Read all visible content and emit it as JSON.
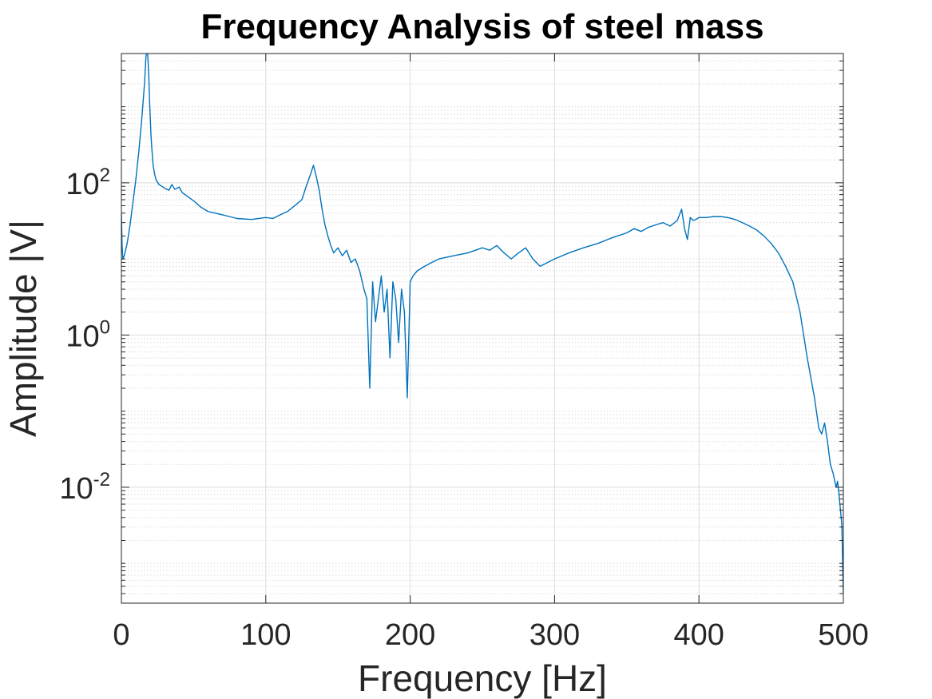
{
  "chart_data": {
    "type": "line",
    "title": "Frequency Analysis of steel mass",
    "xlabel": "Frequency [Hz]",
    "ylabel": "Amplitude |V|",
    "xlim": [
      0,
      500
    ],
    "ylim": [
      0.0003,
      5000
    ],
    "yscale": "log",
    "grid": true,
    "minor_grid": true,
    "line_color": "#0072BD",
    "xticks": [
      {
        "value": 0,
        "label": "0"
      },
      {
        "value": 100,
        "label": "100"
      },
      {
        "value": 200,
        "label": "200"
      },
      {
        "value": 300,
        "label": "300"
      },
      {
        "value": 400,
        "label": "400"
      },
      {
        "value": 500,
        "label": "500"
      }
    ],
    "yticks": [
      {
        "value": 0.01,
        "base": "10",
        "exp": "-2"
      },
      {
        "value": 1,
        "base": "10",
        "exp": "0"
      },
      {
        "value": 100,
        "base": "10",
        "exp": "2"
      }
    ],
    "series": [
      {
        "name": "Amplitude",
        "x": [
          0,
          0.5,
          1,
          2,
          4,
          6,
          8,
          10,
          12,
          14,
          16,
          17,
          18,
          19,
          19.5,
          20,
          20.5,
          21,
          21.5,
          22,
          23,
          24,
          26,
          28,
          30,
          33,
          35,
          37,
          40,
          42,
          45,
          50,
          55,
          60,
          65,
          70,
          75,
          80,
          90,
          100,
          105,
          110,
          115,
          120,
          125,
          128,
          131,
          133,
          135,
          137,
          139,
          141,
          143,
          145,
          147,
          150,
          153,
          156,
          159,
          162,
          165,
          168,
          170,
          172,
          174,
          176,
          178,
          180,
          182,
          184,
          186,
          188,
          190,
          192,
          194,
          196,
          198,
          200,
          202,
          205,
          210,
          215,
          220,
          230,
          240,
          250,
          255,
          260,
          265,
          270,
          275,
          280,
          285,
          290,
          300,
          310,
          320,
          330,
          340,
          350,
          355,
          360,
          365,
          370,
          375,
          380,
          385,
          388,
          390,
          392,
          394,
          396,
          398,
          400,
          405,
          410,
          415,
          420,
          425,
          430,
          435,
          440,
          445,
          450,
          455,
          460,
          465,
          470,
          475,
          480,
          483,
          485,
          487,
          489,
          491,
          493,
          495,
          496,
          497,
          498,
          498.5,
          499,
          499.5,
          500
        ],
        "values": [
          40,
          15,
          10,
          11,
          16,
          28,
          55,
          110,
          250,
          650,
          2000,
          4500,
          6000,
          2500,
          1200,
          700,
          420,
          300,
          220,
          170,
          130,
          110,
          95,
          90,
          85,
          80,
          95,
          82,
          88,
          75,
          68,
          58,
          48,
          42,
          40,
          38,
          36,
          34,
          33,
          35,
          34,
          38,
          42,
          50,
          60,
          90,
          130,
          170,
          120,
          80,
          45,
          28,
          20,
          15,
          12,
          14,
          11,
          13,
          9,
          10,
          7,
          4,
          3,
          0.2,
          5,
          1.5,
          3,
          6,
          2,
          4,
          0.5,
          5,
          3,
          0.8,
          4,
          2,
          0.15,
          5,
          6,
          7,
          8,
          9,
          10,
          11,
          12,
          14,
          13,
          15,
          12,
          10,
          12,
          14,
          10,
          8,
          10,
          12,
          14,
          16,
          19,
          22,
          25,
          23,
          26,
          28,
          30,
          27,
          32,
          45,
          25,
          18,
          35,
          32,
          33,
          35,
          35,
          36,
          36,
          35,
          33,
          30,
          27,
          24,
          20,
          16,
          12,
          8,
          5,
          2,
          0.5,
          0.15,
          0.06,
          0.05,
          0.07,
          0.04,
          0.02,
          0.015,
          0.01,
          0.012,
          0.008,
          0.005,
          0.004,
          0.003,
          0.001,
          0.0004
        ]
      }
    ]
  }
}
